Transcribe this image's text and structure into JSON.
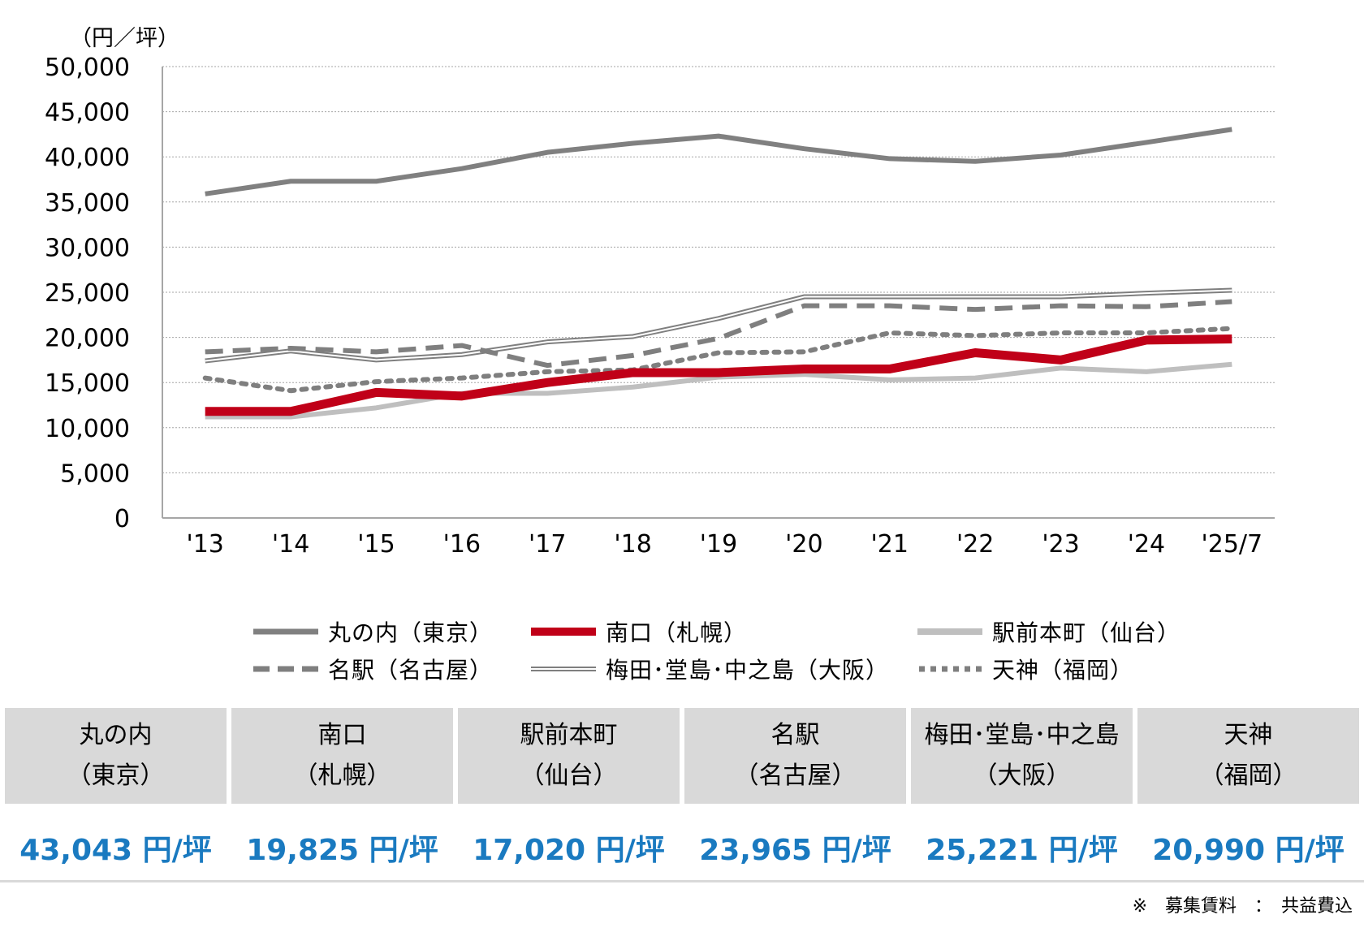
{
  "chart_data": {
    "type": "line",
    "unit_label": "（円／坪）",
    "categories": [
      "'13",
      "'14",
      "'15",
      "'16",
      "'17",
      "'18",
      "'19",
      "'20",
      "'21",
      "'22",
      "'23",
      "'24",
      "'25/7"
    ],
    "ylim": [
      0,
      50000
    ],
    "yticks": [
      0,
      5000,
      10000,
      15000,
      20000,
      25000,
      30000,
      35000,
      40000,
      45000,
      50000
    ],
    "ytick_labels": [
      "0",
      "5,000",
      "10,000",
      "15,000",
      "20,000",
      "25,000",
      "30,000",
      "35,000",
      "40,000",
      "45,000",
      "50,000"
    ],
    "grid": true,
    "legend_position": "bottom",
    "series": [
      {
        "name": "丸の内（東京）",
        "style": "solid-thick",
        "color": "#808080",
        "values": [
          35900,
          37300,
          37300,
          38700,
          40500,
          41500,
          42300,
          40900,
          39800,
          39500,
          40200,
          41600,
          43043
        ]
      },
      {
        "name": "南口（札幌）",
        "style": "solid-bold",
        "color": "#c00018",
        "values": [
          11800,
          11800,
          13900,
          13500,
          15000,
          16100,
          16100,
          16500,
          16500,
          18300,
          17500,
          19700,
          19825
        ]
      },
      {
        "name": "駅前本町（仙台）",
        "style": "solid-light",
        "color": "#bfbfbf",
        "values": [
          11200,
          11200,
          12200,
          13800,
          13800,
          14500,
          15600,
          15900,
          15300,
          15500,
          16600,
          16200,
          17020
        ]
      },
      {
        "name": "名駅（名古屋）",
        "style": "dashed",
        "color": "#7f7f7f",
        "values": [
          18400,
          18800,
          18400,
          19100,
          16900,
          18000,
          19900,
          23500,
          23500,
          23100,
          23500,
          23400,
          23965
        ]
      },
      {
        "name": "梅田･堂島･中之島（大阪）",
        "style": "double",
        "color": "#7f7f7f",
        "values": [
          17400,
          18500,
          17500,
          18100,
          19500,
          20100,
          22100,
          24500,
          24500,
          24500,
          24500,
          24900,
          25221
        ]
      },
      {
        "name": "天神（福岡）",
        "style": "dotted",
        "color": "#7f7f7f",
        "values": [
          15500,
          14100,
          15100,
          15500,
          16200,
          16400,
          18300,
          18400,
          20500,
          20200,
          20500,
          20500,
          20990
        ]
      }
    ]
  },
  "summary": [
    {
      "line1": "丸の内",
      "line2": "（東京）",
      "value": "43,043 円/坪"
    },
    {
      "line1": "南口",
      "line2": "（札幌）",
      "value": "19,825 円/坪"
    },
    {
      "line1": "駅前本町",
      "line2": "（仙台）",
      "value": "17,020 円/坪"
    },
    {
      "line1": "名駅",
      "line2": "（名古屋）",
      "value": "23,965 円/坪"
    },
    {
      "line1": "梅田･堂島･中之島",
      "line2": "（大阪）",
      "value": "25,221 円/坪"
    },
    {
      "line1": "天神",
      "line2": "（福岡）",
      "value": "20,990 円/坪"
    }
  ],
  "note": "※　募集賃料　：　共益費込"
}
